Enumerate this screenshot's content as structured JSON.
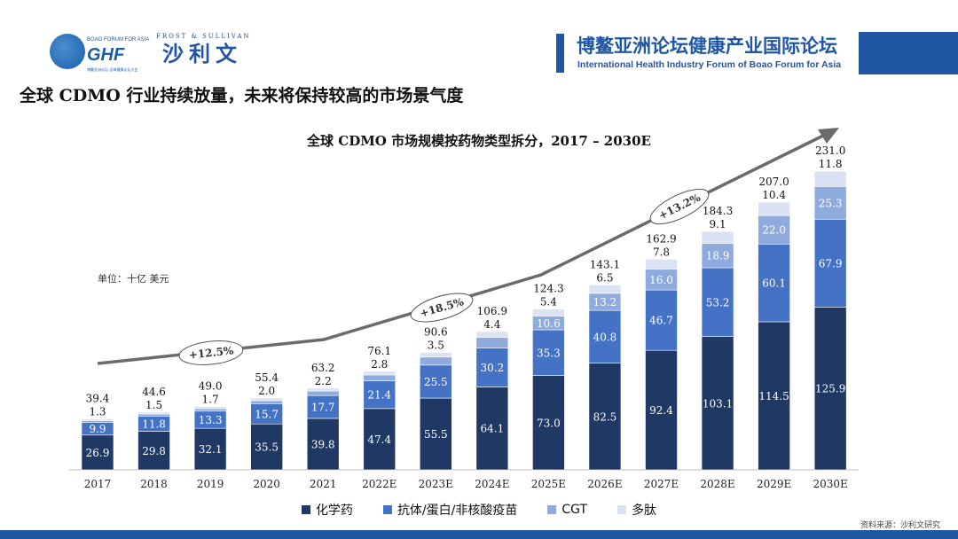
{
  "header": {
    "logo_ghf": "GHF",
    "logo_boao": "BOAO FORUM FOR ASIA",
    "logo_boao_cn": "博鳌亚洲论坛·全球健康论坛大会",
    "frost": "FROST & SULLIVAN",
    "sullivan_cn": "沙利文",
    "title": "博鳌亚洲论坛健康产业国际论坛",
    "subtitle": "International Health Industry Forum of Boao Forum for Asia"
  },
  "main_title": "全球 CDMO 行业持续放量，未来将保持较高的市场景气度",
  "source": "资料来源：沙利文研究",
  "chart_data": {
    "type": "bar",
    "stacked": true,
    "title": "全球 CDMO 市场规模按药物类型拆分，2017 – 2030E",
    "unit": "单位：十亿 美元",
    "categories": [
      "2017",
      "2018",
      "2019",
      "2020",
      "2021",
      "2022E",
      "2023E",
      "2024E",
      "2025E",
      "2026E",
      "2027E",
      "2028E",
      "2029E",
      "2030E"
    ],
    "series": [
      {
        "name": "化学药",
        "color": "#1f3864",
        "values": [
          26.9,
          29.8,
          32.1,
          35.5,
          39.8,
          47.4,
          55.5,
          64.1,
          73.0,
          82.5,
          92.4,
          103.1,
          114.5,
          125.9
        ]
      },
      {
        "name": "抗体/蛋白/非核酸疫苗",
        "color": "#4472c4",
        "values": [
          9.9,
          11.8,
          13.3,
          15.7,
          17.7,
          21.4,
          25.5,
          30.2,
          35.3,
          40.8,
          46.7,
          53.2,
          60.1,
          67.9
        ]
      },
      {
        "name": "CGT",
        "color": "#8faadc",
        "values": [
          1.3,
          1.5,
          1.9,
          2.3,
          3.4,
          4.6,
          6.2,
          8.2,
          10.6,
          13.2,
          16.0,
          18.9,
          22.0,
          25.3
        ]
      },
      {
        "name": "多肽",
        "color": "#dae3f3",
        "values": [
          1.3,
          1.5,
          1.7,
          2.0,
          2.2,
          2.8,
          3.5,
          4.4,
          5.4,
          6.5,
          7.8,
          9.1,
          10.4,
          11.8
        ]
      }
    ],
    "totals": [
      39.4,
      44.6,
      49.0,
      55.4,
      63.2,
      76.1,
      90.6,
      106.9,
      124.3,
      143.1,
      162.9,
      184.3,
      207.0,
      231.0
    ],
    "cagr_labels": [
      "+12.5%",
      "+18.5%",
      "+13.2%"
    ],
    "ylim": [
      0,
      231
    ]
  }
}
